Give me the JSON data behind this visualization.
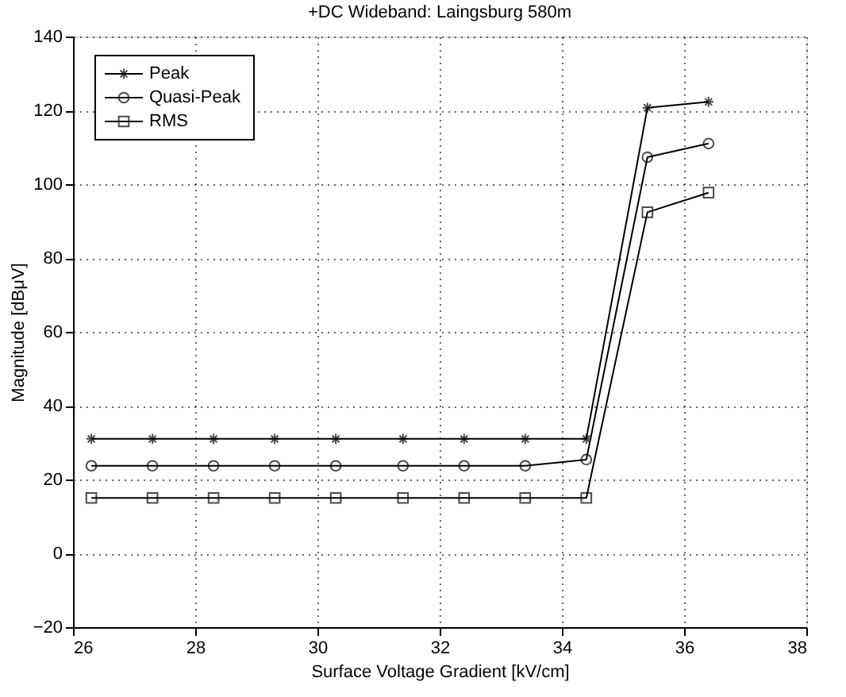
{
  "chart_data": {
    "type": "line",
    "title": "+DC Wideband: Laingsburg 580m",
    "xlabel": "Surface Voltage Gradient [kV/cm]",
    "ylabel": "Magnitude [dBμV]",
    "x": [
      26.3,
      27.3,
      28.3,
      29.3,
      30.3,
      31.4,
      32.4,
      33.4,
      34.4,
      35.4,
      36.4
    ],
    "series": [
      {
        "name": "Peak",
        "color": "#000000",
        "marker": "cross",
        "values": [
          31,
          31,
          31,
          31,
          31,
          31,
          31,
          31,
          31,
          120.7,
          122.3
        ]
      },
      {
        "name": "Quasi-Peak",
        "color": "#000000",
        "marker": "circle",
        "values": [
          23.7,
          23.7,
          23.7,
          23.7,
          23.7,
          23.7,
          23.7,
          23.7,
          25.4,
          107.3,
          111
        ]
      },
      {
        "name": "RMS",
        "color": "#000000",
        "marker": "square",
        "values": [
          15,
          15,
          15,
          15,
          15,
          15,
          15,
          15,
          15,
          92.4,
          97.7
        ]
      }
    ],
    "xlim": [
      26,
      38
    ],
    "xticks": [
      26,
      28,
      30,
      32,
      34,
      36,
      38
    ],
    "ylim": [
      -20,
      140
    ],
    "yticks": [
      -20,
      0,
      20,
      40,
      60,
      80,
      100,
      120,
      140
    ],
    "grid": true,
    "legend": "top left",
    "line_style": "solid"
  }
}
